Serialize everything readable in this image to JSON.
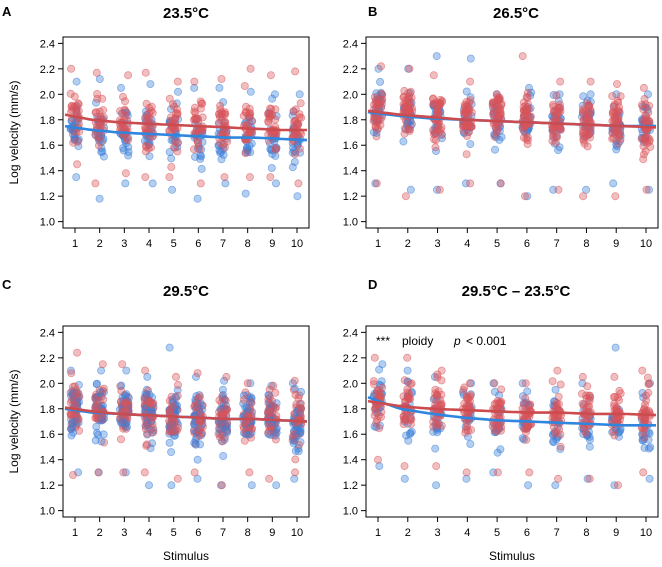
{
  "colors": {
    "diploid": "#3b7fd8",
    "triploid": "#d9545a",
    "diploid_line": "#2e86de",
    "triploid_line": "#cc4b4e",
    "frame": "#000000"
  },
  "chart_data": [
    {
      "type": "scatter",
      "panel": "A",
      "title": "23.5°C",
      "xlabel": "",
      "ylabel": "Log velocity (mm/s)",
      "categories": [
        "1",
        "2",
        "3",
        "4",
        "5",
        "6",
        "7",
        "8",
        "9",
        "10"
      ],
      "ylim": [
        0.95,
        2.45
      ],
      "yticks": [
        "1.0",
        "1.2",
        "1.4",
        "1.6",
        "1.8",
        "2.0",
        "2.2",
        "2.4"
      ],
      "grid": false,
      "series": [
        {
          "color_key": "diploid",
          "fit": [
            1.75,
            1.72,
            1.7,
            1.69,
            1.68,
            1.67,
            1.66,
            1.66,
            1.65,
            1.64
          ],
          "mean": [
            1.76,
            1.72,
            1.7,
            1.7,
            1.68,
            1.67,
            1.67,
            1.66,
            1.65,
            1.65
          ],
          "spread": 0.17,
          "n": 26,
          "min": [
            1.35,
            1.18,
            1.3,
            1.3,
            1.25,
            1.18,
            1.3,
            1.22,
            1.3,
            1.2
          ],
          "max": [
            2.1,
            2.12,
            2.05,
            2.08,
            2.02,
            2.05,
            2.05,
            2.02,
            2.0,
            2.0
          ]
        },
        {
          "color_key": "triploid",
          "fit": [
            1.84,
            1.8,
            1.78,
            1.77,
            1.76,
            1.75,
            1.74,
            1.73,
            1.72,
            1.72
          ],
          "mean": [
            1.86,
            1.8,
            1.78,
            1.77,
            1.76,
            1.75,
            1.74,
            1.74,
            1.73,
            1.72
          ],
          "spread": 0.16,
          "n": 30,
          "min": [
            1.45,
            1.3,
            1.38,
            1.35,
            1.35,
            1.3,
            1.35,
            1.35,
            1.35,
            1.3
          ],
          "max": [
            2.2,
            2.17,
            2.15,
            2.17,
            2.1,
            2.1,
            2.12,
            2.2,
            2.15,
            2.18
          ]
        }
      ]
    },
    {
      "type": "scatter",
      "panel": "B",
      "title": "26.5°C",
      "xlabel": "",
      "ylabel": "",
      "categories": [
        "1",
        "2",
        "3",
        "4",
        "5",
        "6",
        "7",
        "8",
        "9",
        "10"
      ],
      "ylim": [
        0.95,
        2.45
      ],
      "yticks": [
        "1.0",
        "1.2",
        "1.4",
        "1.6",
        "1.8",
        "2.0",
        "2.2",
        "2.4"
      ],
      "grid": false,
      "series": [
        {
          "color_key": "diploid",
          "fit": [
            1.86,
            1.83,
            1.81,
            1.8,
            1.79,
            1.78,
            1.77,
            1.76,
            1.75,
            1.75
          ],
          "mean": [
            1.87,
            1.84,
            1.82,
            1.8,
            1.79,
            1.78,
            1.77,
            1.76,
            1.76,
            1.75
          ],
          "spread": 0.15,
          "n": 28,
          "min": [
            1.3,
            1.25,
            1.25,
            1.3,
            1.3,
            1.2,
            1.25,
            1.25,
            1.3,
            1.25
          ],
          "max": [
            2.2,
            2.2,
            2.3,
            2.28,
            2.0,
            2.05,
            2.0,
            2.0,
            2.0,
            2.0
          ]
        },
        {
          "color_key": "triploid",
          "fit": [
            1.87,
            1.84,
            1.82,
            1.8,
            1.79,
            1.78,
            1.77,
            1.76,
            1.75,
            1.74
          ],
          "mean": [
            1.88,
            1.85,
            1.83,
            1.81,
            1.8,
            1.79,
            1.78,
            1.77,
            1.76,
            1.75
          ],
          "spread": 0.16,
          "n": 40,
          "min": [
            1.3,
            1.2,
            1.25,
            1.3,
            1.3,
            1.2,
            1.25,
            1.2,
            1.2,
            1.25
          ],
          "max": [
            2.22,
            2.2,
            2.15,
            2.1,
            2.0,
            2.3,
            2.1,
            2.1,
            2.08,
            2.05
          ]
        }
      ]
    },
    {
      "type": "scatter",
      "panel": "C",
      "title": "29.5°C",
      "xlabel": "Stimulus",
      "ylabel": "Log velocity (mm/s)",
      "categories": [
        "1",
        "2",
        "3",
        "4",
        "5",
        "6",
        "7",
        "8",
        "9",
        "10"
      ],
      "ylim": [
        0.95,
        2.45
      ],
      "yticks": [
        "1.0",
        "1.2",
        "1.4",
        "1.6",
        "1.8",
        "2.0",
        "2.2",
        "2.4"
      ],
      "grid": false,
      "series": [
        {
          "color_key": "diploid",
          "fit": [
            1.8,
            1.77,
            1.76,
            1.75,
            1.74,
            1.73,
            1.72,
            1.72,
            1.71,
            1.7
          ],
          "mean": [
            1.8,
            1.78,
            1.76,
            1.75,
            1.74,
            1.73,
            1.72,
            1.72,
            1.71,
            1.7
          ],
          "spread": 0.16,
          "n": 40,
          "min": [
            1.3,
            1.3,
            1.3,
            1.2,
            1.2,
            1.25,
            1.2,
            1.2,
            1.2,
            1.25
          ],
          "max": [
            2.1,
            2.1,
            2.1,
            2.05,
            2.28,
            2.05,
            2.02,
            2.0,
            1.98,
            2.0
          ]
        },
        {
          "color_key": "triploid",
          "fit": [
            1.81,
            1.78,
            1.76,
            1.75,
            1.74,
            1.73,
            1.72,
            1.72,
            1.71,
            1.7
          ],
          "mean": [
            1.81,
            1.78,
            1.76,
            1.75,
            1.74,
            1.73,
            1.72,
            1.72,
            1.71,
            1.7
          ],
          "spread": 0.16,
          "n": 40,
          "min": [
            1.28,
            1.3,
            1.3,
            1.3,
            1.25,
            1.3,
            1.2,
            1.3,
            1.25,
            1.3
          ],
          "max": [
            2.24,
            2.15,
            2.15,
            2.1,
            2.05,
            2.08,
            2.05,
            2.0,
            1.98,
            2.02
          ]
        }
      ]
    },
    {
      "type": "scatter",
      "panel": "D",
      "title": "29.5°C – 23.5°C",
      "xlabel": "Stimulus",
      "ylabel": "",
      "categories": [
        "1",
        "2",
        "3",
        "4",
        "5",
        "6",
        "7",
        "8",
        "9",
        "10"
      ],
      "ylim": [
        0.95,
        2.45
      ],
      "yticks": [
        "1.0",
        "1.2",
        "1.4",
        "1.6",
        "1.8",
        "2.0",
        "2.2",
        "2.4"
      ],
      "grid": false,
      "annotation": {
        "stars": "***",
        "text": "ploidy",
        "p": "p",
        "value": "< 0.001"
      },
      "series": [
        {
          "color_key": "diploid",
          "fit": [
            1.89,
            1.8,
            1.76,
            1.73,
            1.71,
            1.7,
            1.69,
            1.68,
            1.67,
            1.67
          ],
          "mean": [
            1.88,
            1.8,
            1.76,
            1.73,
            1.71,
            1.7,
            1.69,
            1.68,
            1.67,
            1.66
          ],
          "spread": 0.17,
          "n": 24,
          "min": [
            1.35,
            1.25,
            1.2,
            1.25,
            1.3,
            1.2,
            1.2,
            1.25,
            1.2,
            1.25
          ],
          "max": [
            2.15,
            2.1,
            2.05,
            2.0,
            2.0,
            2.0,
            1.95,
            2.0,
            2.28,
            2.0
          ]
        },
        {
          "color_key": "triploid",
          "fit": [
            1.86,
            1.82,
            1.8,
            1.79,
            1.78,
            1.77,
            1.77,
            1.76,
            1.76,
            1.75
          ],
          "mean": [
            1.88,
            1.83,
            1.81,
            1.79,
            1.78,
            1.77,
            1.77,
            1.76,
            1.76,
            1.75
          ],
          "spread": 0.16,
          "n": 34,
          "min": [
            1.4,
            1.35,
            1.35,
            1.3,
            1.3,
            1.3,
            1.25,
            1.25,
            1.2,
            1.3
          ],
          "max": [
            2.2,
            2.2,
            2.1,
            2.0,
            2.0,
            2.0,
            2.1,
            2.05,
            2.05,
            2.1
          ]
        }
      ]
    }
  ]
}
